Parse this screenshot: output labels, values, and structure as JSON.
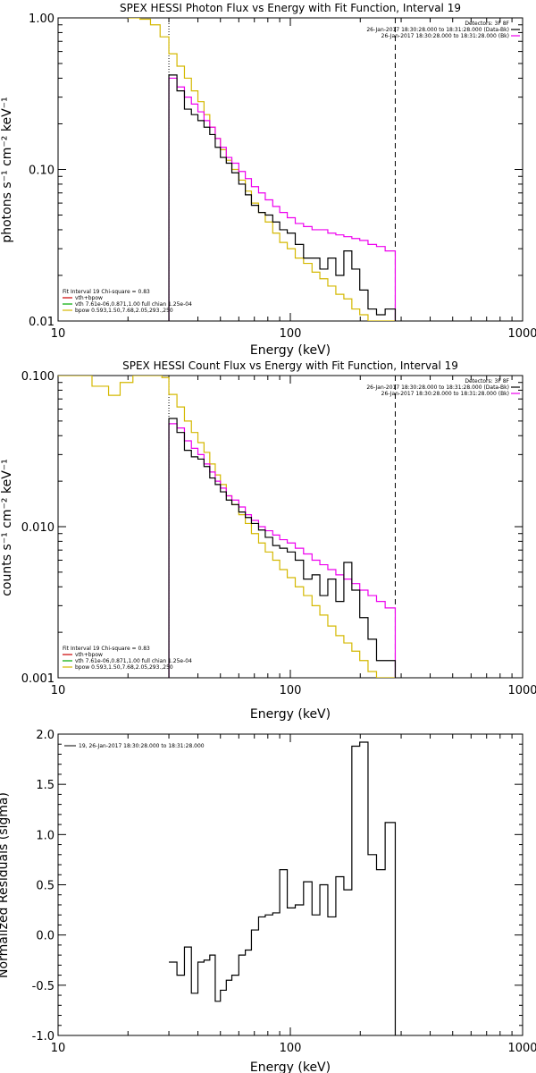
{
  "colors": {
    "data": "#000000",
    "vth": "#cc0000",
    "vth_total": "#ee00ee",
    "vth_single": "#00aa00",
    "bpow": "#d4b800"
  },
  "chart_data": [
    {
      "type": "line",
      "title": "SPEX HESSI Photon Flux vs Energy with Fit Function, Interval 19",
      "xlabel": "Energy (keV)",
      "ylabel": "photons s⁻¹ cm⁻² keV⁻¹",
      "xscale": "log",
      "yscale": "log",
      "xlim": [
        10,
        1000
      ],
      "ylim": [
        0.01,
        1.0
      ],
      "xticks": [
        "10",
        "100",
        "1000"
      ],
      "yticks": [
        "0.01",
        "0.10",
        "1.00"
      ],
      "grid": false,
      "vlines": [
        {
          "x": 30,
          "style": "dotted"
        },
        {
          "x": 283,
          "style": "dashed"
        }
      ],
      "legend_top_right": [
        "Detectors: 3F 8F",
        "26-Jan-2017 18:30:28.000 to 18:31:28.000 (Data-Bk)",
        "26-Jan-2017 18:30:28.000 to 18:31:28.000 (Bk)"
      ],
      "legend_bottom_left": [
        "Fit Interval 19   Chi-square = 0.83",
        "vth+bpow",
        "vth 7.61e-06,0.871,1.00  full chian 1.25e-04",
        "bpow 0.593,1.50,7.68,2.05,293.,250"
      ],
      "series": [
        {
          "name": "Data-Bk",
          "color": "#000000",
          "edges": [
            30,
            32.5,
            35,
            37.5,
            40,
            42.5,
            45,
            47.5,
            50,
            53,
            56,
            60,
            64,
            68,
            73,
            78,
            84,
            90,
            97,
            105,
            114,
            124,
            134,
            145,
            157,
            170,
            184,
            199,
            216,
            235,
            256,
            283
          ],
          "values": [
            0.42,
            0.33,
            0.25,
            0.23,
            0.21,
            0.19,
            0.17,
            0.14,
            0.12,
            0.11,
            0.095,
            0.08,
            0.068,
            0.058,
            0.052,
            0.05,
            0.045,
            0.04,
            0.038,
            0.032,
            0.026,
            0.026,
            0.022,
            0.026,
            0.02,
            0.029,
            0.022,
            0.016,
            0.012,
            0.011,
            0.012
          ]
        },
        {
          "name": "vth+bpow",
          "color": "#ee00ee",
          "edges": [
            30,
            32.5,
            35,
            37.5,
            40,
            42.5,
            45,
            47.5,
            50,
            53,
            56,
            60,
            64,
            68,
            73,
            78,
            84,
            90,
            97,
            105,
            114,
            124,
            134,
            145,
            157,
            170,
            184,
            199,
            216,
            235,
            256,
            283
          ],
          "values": [
            0.4,
            0.35,
            0.3,
            0.27,
            0.24,
            0.21,
            0.19,
            0.16,
            0.14,
            0.12,
            0.11,
            0.097,
            0.087,
            0.077,
            0.07,
            0.063,
            0.057,
            0.052,
            0.048,
            0.044,
            0.042,
            0.04,
            0.04,
            0.038,
            0.037,
            0.036,
            0.035,
            0.034,
            0.032,
            0.031,
            0.029
          ]
        },
        {
          "name": "bpow",
          "color": "#d4b800",
          "edges": [
            20,
            22.5,
            25,
            27.5,
            30,
            32.5,
            35,
            37.5,
            40,
            42.5,
            45,
            47.5,
            50,
            53,
            56,
            60,
            64,
            68,
            73,
            78,
            84,
            90,
            97,
            105,
            114,
            124,
            134,
            145,
            157,
            170,
            184,
            199,
            216,
            235,
            256,
            283
          ],
          "values": [
            1.0,
            0.98,
            0.9,
            0.75,
            0.58,
            0.48,
            0.4,
            0.33,
            0.28,
            0.23,
            0.19,
            0.16,
            0.135,
            0.115,
            0.1,
            0.085,
            0.072,
            0.06,
            0.052,
            0.045,
            0.038,
            0.033,
            0.03,
            0.026,
            0.024,
            0.021,
            0.019,
            0.017,
            0.015,
            0.014,
            0.012,
            0.011,
            0.01,
            0.0095,
            0.009
          ]
        }
      ]
    },
    {
      "type": "line",
      "title": "SPEX HESSI Count Flux vs Energy with Fit Function, Interval 19",
      "xlabel": "Energy (keV)",
      "ylabel": "counts s⁻¹ cm⁻² keV⁻¹",
      "xscale": "log",
      "yscale": "log",
      "xlim": [
        10,
        1000
      ],
      "ylim": [
        0.001,
        0.1
      ],
      "xticks": [
        "10",
        "100",
        "1000"
      ],
      "yticks": [
        "0.001",
        "0.010",
        "0.100"
      ],
      "grid": false,
      "vlines": [
        {
          "x": 30,
          "style": "dotted"
        },
        {
          "x": 283,
          "style": "dashed"
        }
      ],
      "legend_top_right": [
        "Detectors: 3F 8F",
        "26-Jan-2017 18:30:28.000 to 18:31:28.000 (Data-Bk)",
        "26-Jan-2017 18:30:28.000 to 18:31:28.000 (Bk)"
      ],
      "legend_bottom_left": [
        "Fit Interval 19   Chi-square = 0.83",
        "vth+bpow",
        "vth 7.61e-06,0.871,1.00  full chian 1.25e-04",
        "bpow 0.593,1.50,7.68,2.05,293.,250"
      ],
      "series": [
        {
          "name": "Data-Bk",
          "color": "#000000",
          "edges": [
            30,
            32.5,
            35,
            37.5,
            40,
            42.5,
            45,
            47.5,
            50,
            53,
            56,
            60,
            64,
            68,
            73,
            78,
            84,
            90,
            97,
            105,
            114,
            124,
            134,
            145,
            157,
            170,
            184,
            199,
            216,
            235,
            256,
            283
          ],
          "values": [
            0.052,
            0.042,
            0.032,
            0.029,
            0.028,
            0.025,
            0.021,
            0.019,
            0.017,
            0.015,
            0.014,
            0.0125,
            0.0115,
            0.0105,
            0.0095,
            0.0085,
            0.0075,
            0.0072,
            0.0068,
            0.006,
            0.0045,
            0.0048,
            0.0035,
            0.0045,
            0.0032,
            0.0058,
            0.0038,
            0.0025,
            0.0018,
            0.0013,
            0.0013
          ]
        },
        {
          "name": "vth+bpow",
          "color": "#ee00ee",
          "edges": [
            30,
            32.5,
            35,
            37.5,
            40,
            42.5,
            45,
            47.5,
            50,
            53,
            56,
            60,
            64,
            68,
            73,
            78,
            84,
            90,
            97,
            105,
            114,
            124,
            134,
            145,
            157,
            170,
            184,
            199,
            216,
            235,
            256,
            283
          ],
          "values": [
            0.048,
            0.045,
            0.037,
            0.033,
            0.03,
            0.026,
            0.023,
            0.02,
            0.018,
            0.016,
            0.015,
            0.0135,
            0.012,
            0.011,
            0.01,
            0.0094,
            0.0088,
            0.0082,
            0.0078,
            0.0072,
            0.0066,
            0.006,
            0.0056,
            0.0052,
            0.0048,
            0.0045,
            0.0042,
            0.0038,
            0.0035,
            0.0032,
            0.0029
          ]
        },
        {
          "name": "bpow",
          "color": "#d4b800",
          "edges": [
            10,
            12,
            14,
            16.5,
            18.5,
            21,
            23,
            26,
            28,
            30,
            32.5,
            35,
            37.5,
            40,
            42.5,
            45,
            47.5,
            50,
            53,
            56,
            60,
            64,
            68,
            73,
            78,
            84,
            90,
            97,
            105,
            114,
            124,
            134,
            145,
            157,
            170,
            184,
            199,
            216,
            235,
            256,
            283
          ],
          "values": [
            0.1,
            0.1,
            0.085,
            0.074,
            0.09,
            0.1,
            0.1,
            0.1,
            0.097,
            0.075,
            0.062,
            0.05,
            0.042,
            0.036,
            0.031,
            0.026,
            0.022,
            0.019,
            0.016,
            0.014,
            0.012,
            0.0105,
            0.009,
            0.0078,
            0.0068,
            0.006,
            0.0052,
            0.0046,
            0.004,
            0.0035,
            0.003,
            0.0026,
            0.0022,
            0.0019,
            0.0017,
            0.0015,
            0.0013,
            0.0011,
            0.001,
            0.001
          ]
        }
      ]
    },
    {
      "type": "line",
      "title": "",
      "xlabel": "Energy (keV)",
      "ylabel": "Normalized Residuals (sigma)",
      "xscale": "log",
      "yscale": "linear",
      "xlim": [
        10,
        1000
      ],
      "ylim": [
        -1.0,
        2.0
      ],
      "xticks": [
        "10",
        "100",
        "1000"
      ],
      "yticks": [
        "-1.0",
        "-0.5",
        "0.0",
        "0.5",
        "1.0",
        "1.5",
        "2.0"
      ],
      "grid": false,
      "legend_top_left": [
        "19, 26-Jan-2017 18:30:28.000 to 18:31:28.000"
      ],
      "series": [
        {
          "name": "19, 26-Jan-2017 18:30:28.000 to 18:31:28.000",
          "color": "#000000",
          "edges": [
            30,
            32.5,
            35,
            37.5,
            40,
            42.5,
            45,
            47.5,
            50,
            53,
            56,
            60,
            64,
            68,
            73,
            78,
            84,
            90,
            97,
            105,
            114,
            124,
            134,
            145,
            157,
            170,
            184,
            199,
            216,
            235,
            256,
            283
          ],
          "values": [
            -0.27,
            -0.4,
            -0.12,
            -0.58,
            -0.27,
            -0.25,
            -0.2,
            -0.66,
            -0.55,
            -0.45,
            -0.4,
            -0.2,
            -0.15,
            0.05,
            0.18,
            0.2,
            0.22,
            0.65,
            0.27,
            0.3,
            0.53,
            0.2,
            0.5,
            0.18,
            0.58,
            0.45,
            1.88,
            1.92,
            0.8,
            0.65,
            1.12
          ]
        }
      ]
    }
  ]
}
